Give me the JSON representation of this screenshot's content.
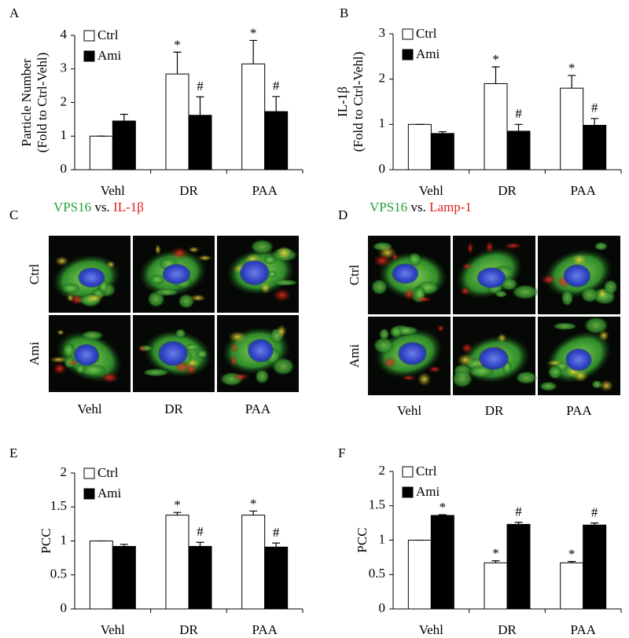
{
  "chart_data": [
    {
      "type": "bar",
      "panel_label": "A",
      "ylabel": [
        "Particle Number",
        "(Fold to Ctrl-Vehl)"
      ],
      "categories": [
        "Vehl",
        "DR",
        "PAA"
      ],
      "ylim": [
        0,
        4
      ],
      "yticks": [
        0,
        1,
        2,
        3,
        4
      ],
      "series": [
        {
          "name": "Ctrl",
          "color": "#ffffff",
          "values": [
            1,
            2.85,
            3.15
          ],
          "errors": [
            0,
            0.65,
            0.7
          ],
          "annotations": [
            null,
            "*",
            "*"
          ]
        },
        {
          "name": "Ami",
          "color": "#000000",
          "values": [
            1.45,
            1.62,
            1.73
          ],
          "errors": [
            0.2,
            0.55,
            0.45
          ],
          "annotations": [
            null,
            "#",
            "#"
          ]
        }
      ]
    },
    {
      "type": "bar",
      "panel_label": "B",
      "ylabel": [
        "IL-1β",
        "(Fold to Ctrl-Vehl)"
      ],
      "categories": [
        "Vehl",
        "DR",
        "PAA"
      ],
      "ylim": [
        0,
        3
      ],
      "yticks": [
        0,
        1,
        2,
        3
      ],
      "series": [
        {
          "name": "Ctrl",
          "color": "#ffffff",
          "values": [
            1,
            1.9,
            1.8
          ],
          "errors": [
            0,
            0.37,
            0.28
          ],
          "annotations": [
            null,
            "*",
            "*"
          ]
        },
        {
          "name": "Ami",
          "color": "#000000",
          "values": [
            0.8,
            0.85,
            0.98
          ],
          "errors": [
            0.04,
            0.15,
            0.15
          ],
          "annotations": [
            null,
            "#",
            "#"
          ]
        }
      ]
    },
    {
      "type": "bar",
      "panel_label": "E",
      "ylabel": [
        "PCC"
      ],
      "categories": [
        "Vehl",
        "DR",
        "PAA"
      ],
      "ylim": [
        0,
        2
      ],
      "yticks": [
        0,
        0.5,
        1,
        1.5,
        2
      ],
      "series": [
        {
          "name": "Ctrl",
          "color": "#ffffff",
          "values": [
            1,
            1.38,
            1.38
          ],
          "errors": [
            0,
            0.04,
            0.06
          ],
          "annotations": [
            null,
            "*",
            "*"
          ]
        },
        {
          "name": "Ami",
          "color": "#000000",
          "values": [
            0.92,
            0.92,
            0.91
          ],
          "errors": [
            0.03,
            0.06,
            0.06
          ],
          "annotations": [
            null,
            "#",
            "#"
          ]
        }
      ]
    },
    {
      "type": "bar",
      "panel_label": "F",
      "ylabel": [
        "PCC"
      ],
      "categories": [
        "Vehl",
        "DR",
        "PAA"
      ],
      "ylim": [
        0,
        2
      ],
      "yticks": [
        0,
        0.5,
        1,
        1.5,
        2
      ],
      "series": [
        {
          "name": "Ctrl",
          "color": "#ffffff",
          "values": [
            1,
            0.67,
            0.67
          ],
          "errors": [
            0,
            0.03,
            0.02
          ],
          "annotations": [
            null,
            "*",
            "*"
          ]
        },
        {
          "name": "Ami",
          "color": "#000000",
          "values": [
            1.36,
            1.23,
            1.22
          ],
          "errors": [
            0.01,
            0.03,
            0.03
          ],
          "annotations": [
            "*",
            "#",
            "#"
          ]
        }
      ]
    }
  ],
  "image_panels": [
    {
      "panel_label": "C",
      "title": [
        {
          "text": "VPS16",
          "color": "#22a03c"
        },
        {
          "text": "vs.",
          "color": "#000000"
        },
        {
          "text": "IL-1β",
          "color": "#e0201c"
        }
      ],
      "row_labels": [
        "Ctrl",
        "Ami"
      ],
      "column_labels": [
        "Vehl",
        "DR",
        "PAA"
      ]
    },
    {
      "panel_label": "D",
      "title": [
        {
          "text": "VPS16",
          "color": "#22a03c"
        },
        {
          "text": "vs.",
          "color": "#000000"
        },
        {
          "text": "Lamp-1",
          "color": "#e0201c"
        }
      ],
      "row_labels": [
        "Ctrl",
        "Ami"
      ],
      "column_labels": [
        "Vehl",
        "DR",
        "PAA"
      ]
    }
  ]
}
